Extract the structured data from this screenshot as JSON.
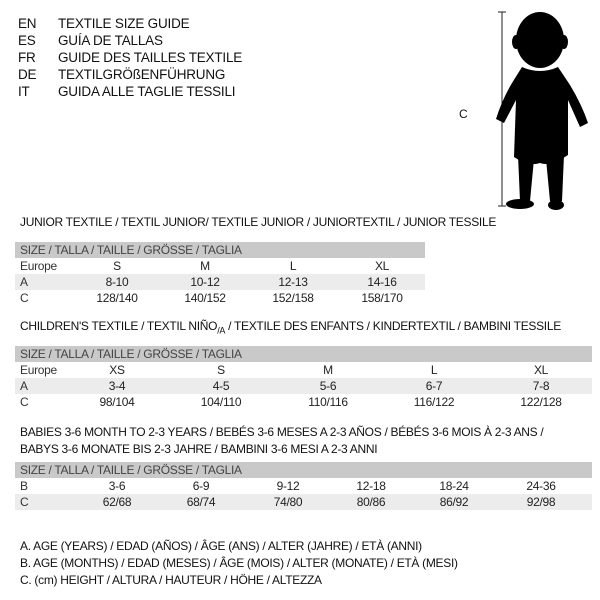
{
  "header": [
    {
      "code": "EN",
      "text": "TEXTILE SIZE GUIDE"
    },
    {
      "code": "ES",
      "text": "GUÍA DE TALLAS"
    },
    {
      "code": "FR",
      "text": "GUIDE DES TAILLES TEXTILE"
    },
    {
      "code": "DE",
      "text": "TEXTILGRÖßENFÜHRUNG"
    },
    {
      "code": "IT",
      "text": "GUIDA ALLE TAGLIE TESSILI"
    }
  ],
  "figure": {
    "label": "C",
    "icon": "child-silhouette"
  },
  "size_header": "SIZE / TALLA / TAILLE / GRÖSSE / TAGLIA",
  "junior": {
    "title": "JUNIOR TEXTILE / TEXTIL JUNIOR/ TEXTILE JUNIOR / JUNIORTEXTIL / JUNIOR TESSILE",
    "rows": [
      {
        "label": "Europe",
        "values": [
          "S",
          "M",
          "L",
          "XL"
        ]
      },
      {
        "label": "A",
        "values": [
          "8-10",
          "10-12",
          "12-13",
          "14-16"
        ]
      },
      {
        "label": "C",
        "values": [
          "128/140",
          "140/152",
          "152/158",
          "158/170"
        ]
      }
    ]
  },
  "children": {
    "title_a": "CHILDREN'S TEXTILE / TEXTIL NIÑO",
    "title_sub": "/A",
    "title_b": " / TEXTILE DES ENFANTS / KINDERTEXTIL / BAMBINI TESSILE",
    "rows": [
      {
        "label": "Europe",
        "values": [
          "XS",
          "S",
          "M",
          "L",
          "XL"
        ]
      },
      {
        "label": "A",
        "values": [
          "3-4",
          "4-5",
          "5-6",
          "6-7",
          "7-8"
        ]
      },
      {
        "label": "C",
        "values": [
          "98/104",
          "104/110",
          "110/116",
          "116/122",
          "122/128"
        ]
      }
    ]
  },
  "babies": {
    "title_1": "BABIES 3-6 MONTH TO 2-3 YEARS / BEBÉS 3-6 MESES A 2-3 AÑOS / BÉBÉS 3-6 MOIS À 2-3 ANS /",
    "title_2": "BABYS 3-6 MONATE BIS 2-3 JAHRE / BAMBINI 3-6 MESI A 2-3 ANNI",
    "rows": [
      {
        "label": "B",
        "values": [
          "3-6",
          "6-9",
          "9-12",
          "12-18",
          "18-24",
          "24-36"
        ]
      },
      {
        "label": "C",
        "values": [
          "62/68",
          "68/74",
          "74/80",
          "80/86",
          "86/92",
          "92/98"
        ]
      }
    ]
  },
  "legend": [
    "A. AGE (YEARS) / EDAD (AÑOS) / ÂGE (ANS) / ALTER (JAHRE) / ETÀ (ANNI)",
    "B. AGE (MONTHS) / EDAD (MESES) / ÂGE (MOIS) / ALTER (MONATE) / ETÀ (MESI)",
    "C. (cm) HEIGHT / ALTURA / HAUTEUR / HÖHE / ALTEZZA"
  ]
}
